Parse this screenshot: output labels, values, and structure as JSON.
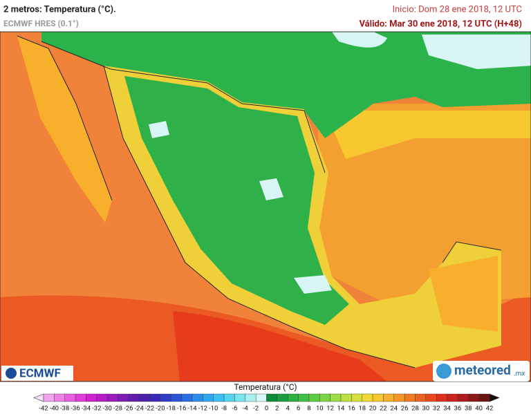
{
  "header": {
    "title": "2 metros: Temperatura (°C).",
    "model": "ECMWF HRES (0.1°)",
    "init": "Inicio: Dom 28 ene 2018, 12 UTC",
    "valid": "Válido: Mar 30 ene 2018, 12 UTC (H+48)"
  },
  "logos": {
    "left": "ECMWF",
    "right": "meteored",
    "right_suffix": ".mx"
  },
  "colorbar": {
    "title": "Temperatura (°C)",
    "ticks": [
      -42,
      -40,
      -38,
      -36,
      -34,
      -32,
      -30,
      -28,
      -26,
      -24,
      -22,
      -20,
      -18,
      -16,
      -14,
      -12,
      -10,
      -8,
      -6,
      -4,
      -2,
      0,
      2,
      4,
      6,
      8,
      10,
      12,
      14,
      16,
      18,
      20,
      22,
      24,
      26,
      28,
      30,
      32,
      34,
      36,
      38,
      40,
      42
    ],
    "colors": [
      "#f2a4ec",
      "#ee82e6",
      "#e85fe0",
      "#e03bd8",
      "#d21fd0",
      "#b81cc8",
      "#9a1cc0",
      "#7d1cb8",
      "#621cb0",
      "#4a20a8",
      "#3a28b8",
      "#2f3cc8",
      "#2a55d8",
      "#2a70e4",
      "#2b8cec",
      "#30a8f0",
      "#3cc0f2",
      "#55d4f0",
      "#7ae4f0",
      "#a8f0f0",
      "#d8f8f8",
      "#0c8a3c",
      "#1a9e3e",
      "#2bb240",
      "#40c044",
      "#5ccc44",
      "#7cd444",
      "#9cdc44",
      "#bce040",
      "#d8e03c",
      "#f0d838",
      "#f8c830",
      "#f8b02c",
      "#f49628",
      "#f07c24",
      "#ec6220",
      "#e8481c",
      "#e0301c",
      "#cc241c",
      "#b01c1c",
      "#8c1818",
      "#6a1414"
    ]
  }
}
